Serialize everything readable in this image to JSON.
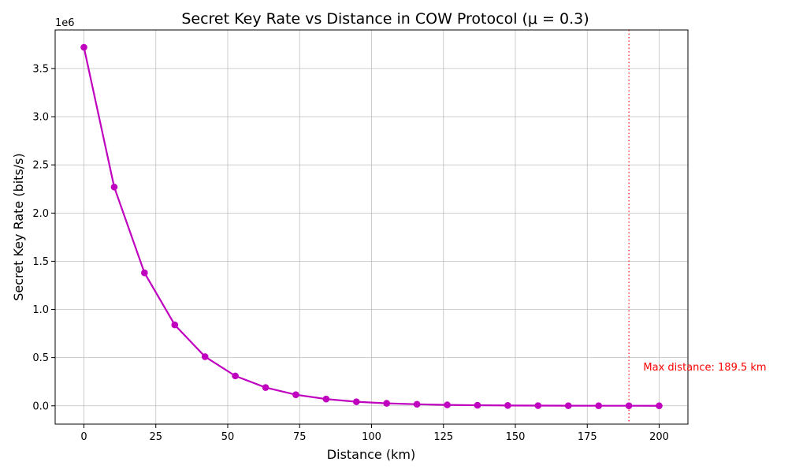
{
  "chart_data": {
    "type": "line",
    "title": "Secret Key Rate vs Distance in COW Protocol (μ = 0.3)",
    "xlabel": "Distance (km)",
    "ylabel": "Secret Key Rate (bits/s)",
    "y_offset_label": "1e6",
    "xlim": [
      -10,
      210
    ],
    "ylim": [
      -0.19,
      3.9
    ],
    "y_unit_multiplier": 1000000,
    "grid": true,
    "x_ticks": [
      0,
      25,
      50,
      75,
      100,
      125,
      150,
      175,
      200
    ],
    "x_tick_labels": [
      "0",
      "25",
      "50",
      "75",
      "100",
      "125",
      "150",
      "175",
      "200"
    ],
    "y_ticks": [
      0.0,
      0.5,
      1.0,
      1.5,
      2.0,
      2.5,
      3.0,
      3.5
    ],
    "y_tick_labels": [
      "0.0",
      "0.5",
      "1.0",
      "1.5",
      "2.0",
      "2.5",
      "3.0",
      "3.5"
    ],
    "series": [
      {
        "color": "#bf00bf",
        "marker": "circle",
        "x": [
          0,
          10.53,
          21.05,
          31.58,
          42.11,
          52.63,
          63.16,
          73.68,
          84.21,
          94.74,
          105.26,
          115.79,
          126.32,
          136.84,
          147.37,
          157.89,
          168.42,
          178.95,
          189.47,
          200
        ],
        "y": [
          3.72,
          2.27,
          1.38,
          0.84,
          0.51,
          0.31,
          0.19,
          0.115,
          0.07,
          0.042,
          0.026,
          0.016,
          0.0095,
          0.0058,
          0.0035,
          0.0021,
          0.0013,
          0.0008,
          0.0005,
          0.0003
        ]
      }
    ],
    "vline": {
      "x": 189.5,
      "color": "#ff0000",
      "style": "dotted"
    },
    "annotation": {
      "text": "Max distance: 189.5 km",
      "x": 194.5,
      "y": 0.4,
      "color": "#ff0000"
    }
  }
}
